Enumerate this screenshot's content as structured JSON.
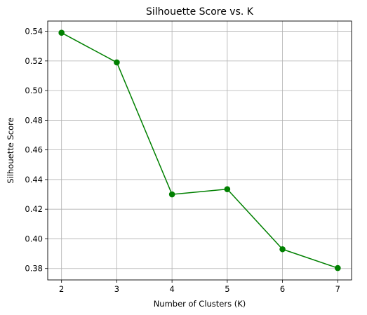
{
  "chart_data": {
    "type": "line",
    "title": "Silhouette Score vs. K",
    "xlabel": "Number of Clusters (K)",
    "ylabel": "Silhouette Score",
    "x": [
      2,
      3,
      4,
      5,
      6,
      7
    ],
    "series": [
      {
        "values": [
          0.539,
          0.519,
          0.43,
          0.4335,
          0.393,
          0.3803
        ],
        "color": "#008000",
        "marker": "circle"
      }
    ],
    "xticks": [
      2,
      3,
      4,
      5,
      6,
      7
    ],
    "yticks": [
      "0.38",
      "0.40",
      "0.42",
      "0.44",
      "0.46",
      "0.48",
      "0.50",
      "0.52",
      "0.54"
    ],
    "xlim": [
      1.75,
      7.25
    ],
    "ylim": [
      0.3723,
      0.5469
    ],
    "grid": true
  }
}
